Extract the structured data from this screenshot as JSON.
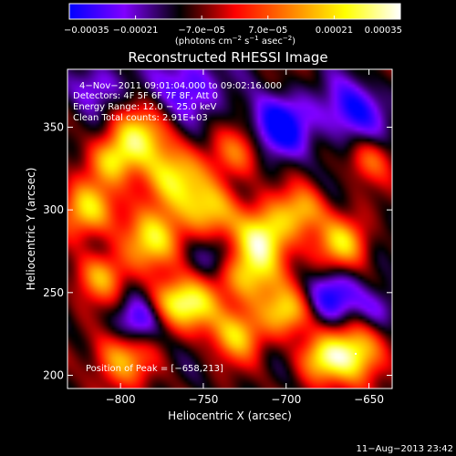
{
  "chart_data": {
    "type": "heatmap",
    "title": "Reconstructed RHESSI Image",
    "xlabel": "Heliocentric X (arcsec)",
    "ylabel": "Heliocentric Y (arcsec)",
    "xlim": [
      -832,
      -636
    ],
    "ylim": [
      192,
      385
    ],
    "xticks": [
      -800,
      -750,
      -700,
      -650
    ],
    "xtick_labels": [
      "−800",
      "−750",
      "−700",
      "−650"
    ],
    "yticks": [
      200,
      250,
      300,
      350
    ],
    "ytick_labels": [
      "200",
      "250",
      "300",
      "350"
    ],
    "colorbar": {
      "range": [
        -0.00035,
        0.00035
      ],
      "ticks": [
        -0.00035,
        -0.00021,
        -7e-05,
        7e-05,
        0.00021,
        0.00035
      ],
      "tick_labels": [
        "−0.00035",
        "−0.00021",
        "−7.0e−05",
        "7.0e−05",
        "0.00021",
        "0.00035"
      ],
      "units_prefix": "(photons cm",
      "units_exp1": "−2",
      "units_mid": " s",
      "units_exp2": "−1",
      "units_mid2": " asec",
      "units_exp3": "−2",
      "units_suffix": ")",
      "colors": [
        "#0000ff",
        "#8000ff",
        "#000000",
        "#ff0000",
        "#ff8000",
        "#ffff00",
        "#ffffff"
      ]
    },
    "annotations": {
      "time_range": "4−Nov−2011 09:01:04.000 to 09:02:16.000",
      "detectors": "Detectors: 4F 5F 6F 7F 8F, Att 0",
      "energy": "Energy Range: 12.0 − 25.0 keV",
      "clean": "Clean     Total counts: 2.91E+03",
      "peak": "Position of Peak = [−658,213]"
    },
    "peak": {
      "x": -658,
      "y": 213
    },
    "blobs": [
      {
        "x": -770,
        "y": 320,
        "amp": 0.9,
        "s": 14
      },
      {
        "x": -790,
        "y": 345,
        "amp": 0.8,
        "s": 12
      },
      {
        "x": -805,
        "y": 330,
        "amp": 0.7,
        "s": 10
      },
      {
        "x": -820,
        "y": 300,
        "amp": 0.85,
        "s": 12
      },
      {
        "x": -812,
        "y": 260,
        "amp": 0.7,
        "s": 10
      },
      {
        "x": -780,
        "y": 282,
        "amp": 0.85,
        "s": 13
      },
      {
        "x": -745,
        "y": 300,
        "amp": 0.8,
        "s": 12
      },
      {
        "x": -722,
        "y": 262,
        "amp": 0.9,
        "s": 14
      },
      {
        "x": -712,
        "y": 285,
        "amp": 0.95,
        "s": 12
      },
      {
        "x": -690,
        "y": 300,
        "amp": 0.7,
        "s": 10
      },
      {
        "x": -666,
        "y": 280,
        "amp": 0.8,
        "s": 11
      },
      {
        "x": -755,
        "y": 242,
        "amp": 0.75,
        "s": 11
      },
      {
        "x": -730,
        "y": 225,
        "amp": 0.8,
        "s": 11
      },
      {
        "x": -700,
        "y": 238,
        "amp": 0.75,
        "s": 10
      },
      {
        "x": -658,
        "y": 213,
        "amp": 1.0,
        "s": 13
      },
      {
        "x": -680,
        "y": 210,
        "amp": 0.7,
        "s": 10
      },
      {
        "x": -800,
        "y": 210,
        "amp": 0.75,
        "s": 12
      },
      {
        "x": -770,
        "y": 245,
        "amp": 0.6,
        "s": 10
      },
      {
        "x": -728,
        "y": 335,
        "amp": 0.6,
        "s": 11
      },
      {
        "x": -650,
        "y": 330,
        "amp": 0.5,
        "s": 9
      },
      {
        "x": -760,
        "y": 375,
        "amp": -0.6,
        "s": 14
      },
      {
        "x": -705,
        "y": 350,
        "amp": -0.8,
        "s": 14
      },
      {
        "x": -660,
        "y": 360,
        "amp": -0.7,
        "s": 13
      },
      {
        "x": -672,
        "y": 248,
        "amp": -0.6,
        "s": 11
      },
      {
        "x": -790,
        "y": 232,
        "amp": -0.6,
        "s": 10
      },
      {
        "x": -740,
        "y": 272,
        "amp": -0.5,
        "s": 10
      },
      {
        "x": -815,
        "y": 375,
        "amp": -0.5,
        "s": 11
      },
      {
        "x": -645,
        "y": 240,
        "amp": -0.5,
        "s": 10
      }
    ]
  },
  "footer": {
    "date_stamp": "11−Aug−2013 23:42"
  }
}
